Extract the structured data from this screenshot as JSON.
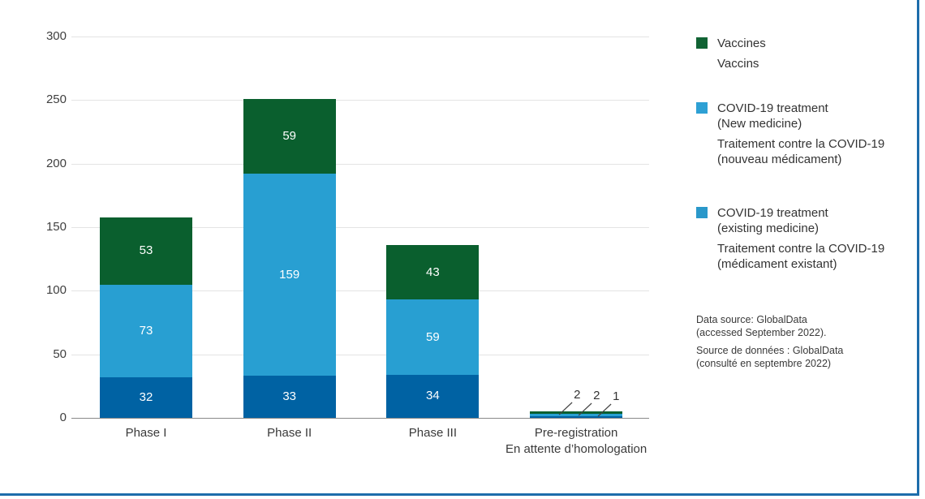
{
  "chart_data": {
    "type": "bar",
    "stacked": true,
    "categories": [
      {
        "label_en": "Phase I",
        "label_fr": ""
      },
      {
        "label_en": "Phase II",
        "label_fr": ""
      },
      {
        "label_en": "Phase III",
        "label_fr": ""
      },
      {
        "label_en": "Pre-registration",
        "label_fr": "En attente d’homologation"
      }
    ],
    "series": [
      {
        "name": "COVID-19 treatment (existing medicine)",
        "color": "#0062a3",
        "values": [
          32,
          33,
          34,
          1
        ]
      },
      {
        "name": "COVID-19 treatment (New medicine)",
        "color": "#289fd2",
        "values": [
          73,
          159,
          59,
          2
        ]
      },
      {
        "name": "Vaccines",
        "color": "#0a5f2e",
        "values": [
          53,
          59,
          43,
          2
        ]
      }
    ],
    "stack_order": "bottom-to-top",
    "y_axis": {
      "ticks": [
        0,
        50,
        100,
        150,
        200,
        250,
        300
      ],
      "ylim": [
        0,
        300
      ]
    },
    "grid": "horizontal-only",
    "legend_position": "right",
    "callout_category_index": 3,
    "callout_values_top_to_bottom": [
      2,
      2,
      1
    ]
  },
  "legend": {
    "items": [
      {
        "color": "#116334",
        "line_en_1": "Vaccines",
        "line_fr_1": "Vaccins"
      },
      {
        "color": "#2ea0d4",
        "line_en_1": "COVID-19 treatment",
        "line_en_2": "(New medicine)",
        "line_fr_1": "Traitement contre la COVID-19",
        "line_fr_2": "(nouveau médicament)"
      },
      {
        "color": "#2a98ca",
        "line_en_1": "COVID-19 treatment",
        "line_en_2": "(existing medicine)",
        "line_fr_1": "Traitement contre la COVID-19",
        "line_fr_2": "(médicament existant)"
      }
    ]
  },
  "source": {
    "en_line_1": "Data source: GlobalData",
    "en_line_2": "(accessed September 2022).",
    "fr_line_1": "Source de données : GlobalData",
    "fr_line_2": "(consulté en septembre 2022)"
  },
  "colors": {
    "frame_border": "#1d6dab",
    "gridline": "#e4e4e4",
    "axis_line": "#8a8a8a",
    "bar_dark_blue": "#0062a3",
    "bar_light_blue": "#289fd2",
    "bar_green": "#0a5f2e",
    "bar_value_text": "#ffffff"
  }
}
